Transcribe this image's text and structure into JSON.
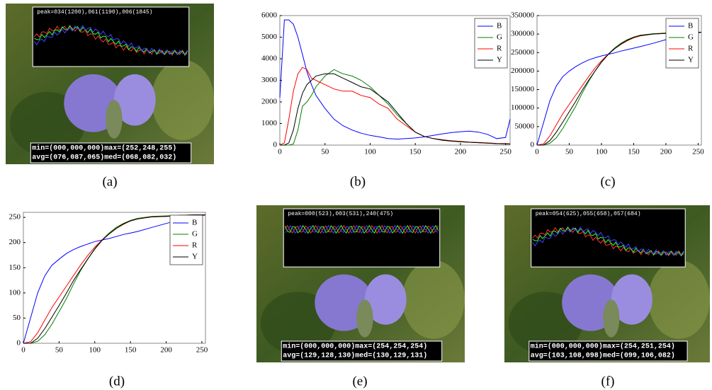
{
  "photos": [
    {
      "caption": "(a)",
      "peak": "peak=034(1200),061(1190),006(1845)",
      "min_max": "min=(000,000,000)max=(252,248,255)",
      "avg_med": "avg=(076,087,065)med=(068,082,032)"
    },
    {
      "caption": "(e)",
      "peak": "peak=000(523),003(531),240(475)",
      "min_max": "min=(000,000,000)max=(254,254,254)",
      "avg_med": "avg=(129,128,130)med=(130,129,131)"
    },
    {
      "caption": "(f)",
      "peak": "peak=054(625),055(658),057(684)",
      "min_max": "min=(000,000,000)max=(254,251,254)",
      "avg_med": "avg=(103,108,098)med=(099,106,082)"
    }
  ],
  "chart_data": [
    {
      "type": "line",
      "caption": "(b)",
      "legend": "upper right",
      "x": [
        0,
        5,
        10,
        15,
        20,
        25,
        30,
        35,
        40,
        50,
        60,
        70,
        80,
        90,
        100,
        110,
        120,
        130,
        140,
        150,
        160,
        170,
        180,
        190,
        200,
        210,
        220,
        230,
        240,
        250,
        255
      ],
      "xlim": [
        0,
        255
      ],
      "xticks": [
        0,
        50,
        100,
        150,
        200,
        250
      ],
      "ylim": [
        0,
        6000
      ],
      "yticks": [
        0,
        1000,
        2000,
        3000,
        4000,
        5000,
        6000
      ],
      "series": [
        {
          "name": "B",
          "color": "#0000ff",
          "values": [
            2200,
            5800,
            5800,
            5600,
            5000,
            4200,
            3400,
            2800,
            2300,
            1700,
            1200,
            900,
            700,
            550,
            450,
            380,
            300,
            280,
            300,
            330,
            380,
            450,
            520,
            580,
            620,
            650,
            600,
            500,
            300,
            350,
            1200
          ]
        },
        {
          "name": "G",
          "color": "#008000",
          "values": [
            0,
            0,
            0,
            50,
            700,
            1800,
            2000,
            2300,
            2700,
            3200,
            3500,
            3300,
            3200,
            3000,
            2700,
            2300,
            1900,
            1400,
            1000,
            600,
            400,
            300,
            220,
            180,
            150,
            130,
            110,
            90,
            70,
            60,
            50
          ]
        },
        {
          "name": "R",
          "color": "#ff0000",
          "values": [
            0,
            100,
            1200,
            2500,
            3300,
            3600,
            3500,
            3100,
            3000,
            2800,
            2600,
            2500,
            2500,
            2300,
            2200,
            1900,
            1700,
            1200,
            900,
            600,
            400,
            300,
            250,
            200,
            170,
            140,
            120,
            100,
            80,
            70,
            60
          ]
        },
        {
          "name": "Y",
          "color": "#000000",
          "values": [
            0,
            0,
            100,
            700,
            1700,
            2400,
            2800,
            3000,
            3200,
            3300,
            3300,
            3100,
            2900,
            2700,
            2600,
            2300,
            2000,
            1500,
            1000,
            600,
            400,
            300,
            230,
            190,
            160,
            130,
            110,
            90,
            70,
            60,
            50
          ]
        }
      ]
    },
    {
      "type": "line",
      "caption": "(c)",
      "legend": "upper right",
      "x": [
        0,
        10,
        20,
        30,
        40,
        50,
        60,
        70,
        80,
        90,
        100,
        110,
        120,
        130,
        140,
        150,
        160,
        180,
        200,
        220,
        240,
        255
      ],
      "xlim": [
        0,
        255
      ],
      "xticks": [
        0,
        50,
        100,
        150,
        200,
        250
      ],
      "ylim": [
        0,
        350000
      ],
      "yticks": [
        0,
        50000,
        100000,
        150000,
        200000,
        250000,
        300000,
        350000
      ],
      "series": [
        {
          "name": "B",
          "color": "#0000ff",
          "values": [
            0,
            60000,
            120000,
            160000,
            185000,
            200000,
            212000,
            222000,
            230000,
            236000,
            241000,
            245000,
            249000,
            254000,
            258000,
            262000,
            266000,
            275000,
            285000,
            293000,
            300000,
            305000
          ]
        },
        {
          "name": "G",
          "color": "#008000",
          "values": [
            0,
            0,
            5000,
            20000,
            45000,
            75000,
            105000,
            140000,
            172000,
            200000,
            225000,
            245000,
            262000,
            275000,
            285000,
            292000,
            297000,
            301000,
            303000,
            304000,
            305000,
            305000
          ]
        },
        {
          "name": "R",
          "color": "#ff0000",
          "values": [
            0,
            3000,
            25000,
            55000,
            85000,
            110000,
            135000,
            160000,
            185000,
            208000,
            228000,
            245000,
            260000,
            272000,
            282000,
            290000,
            295000,
            300000,
            302000,
            304000,
            305000,
            305000
          ]
        },
        {
          "name": "Y",
          "color": "#000000",
          "values": [
            0,
            0,
            12000,
            35000,
            62000,
            90000,
            118000,
            148000,
            175000,
            200000,
            224000,
            244000,
            260000,
            273000,
            283000,
            291000,
            296000,
            300000,
            302000,
            304000,
            305000,
            305000
          ]
        }
      ]
    },
    {
      "type": "line",
      "caption": "(d)",
      "legend": "upper right",
      "x": [
        0,
        10,
        20,
        30,
        40,
        50,
        60,
        70,
        80,
        90,
        100,
        110,
        120,
        130,
        140,
        150,
        160,
        180,
        200,
        220,
        240,
        255
      ],
      "xlim": [
        0,
        255
      ],
      "xticks": [
        0,
        50,
        100,
        150,
        200,
        250
      ],
      "ylim": [
        0,
        260
      ],
      "yticks": [
        0,
        50,
        100,
        150,
        200,
        250
      ],
      "series": [
        {
          "name": "B",
          "color": "#0000ff",
          "values": [
            0,
            50,
            100,
            134,
            155,
            167,
            178,
            186,
            192,
            197,
            202,
            205,
            208,
            212,
            216,
            219,
            222,
            230,
            238,
            245,
            251,
            255
          ]
        },
        {
          "name": "G",
          "color": "#008000",
          "values": [
            0,
            0,
            4,
            17,
            38,
            63,
            88,
            117,
            144,
            167,
            188,
            205,
            219,
            230,
            238,
            244,
            248,
            252,
            253,
            254,
            255,
            255
          ]
        },
        {
          "name": "R",
          "color": "#ff0000",
          "values": [
            0,
            3,
            21,
            46,
            71,
            92,
            113,
            134,
            155,
            174,
            191,
            205,
            217,
            228,
            236,
            243,
            247,
            251,
            252,
            254,
            255,
            255
          ]
        },
        {
          "name": "Y",
          "color": "#000000",
          "values": [
            0,
            0,
            10,
            29,
            52,
            75,
            99,
            124,
            146,
            167,
            187,
            204,
            217,
            228,
            237,
            243,
            247,
            251,
            252,
            254,
            255,
            255
          ]
        }
      ]
    }
  ]
}
